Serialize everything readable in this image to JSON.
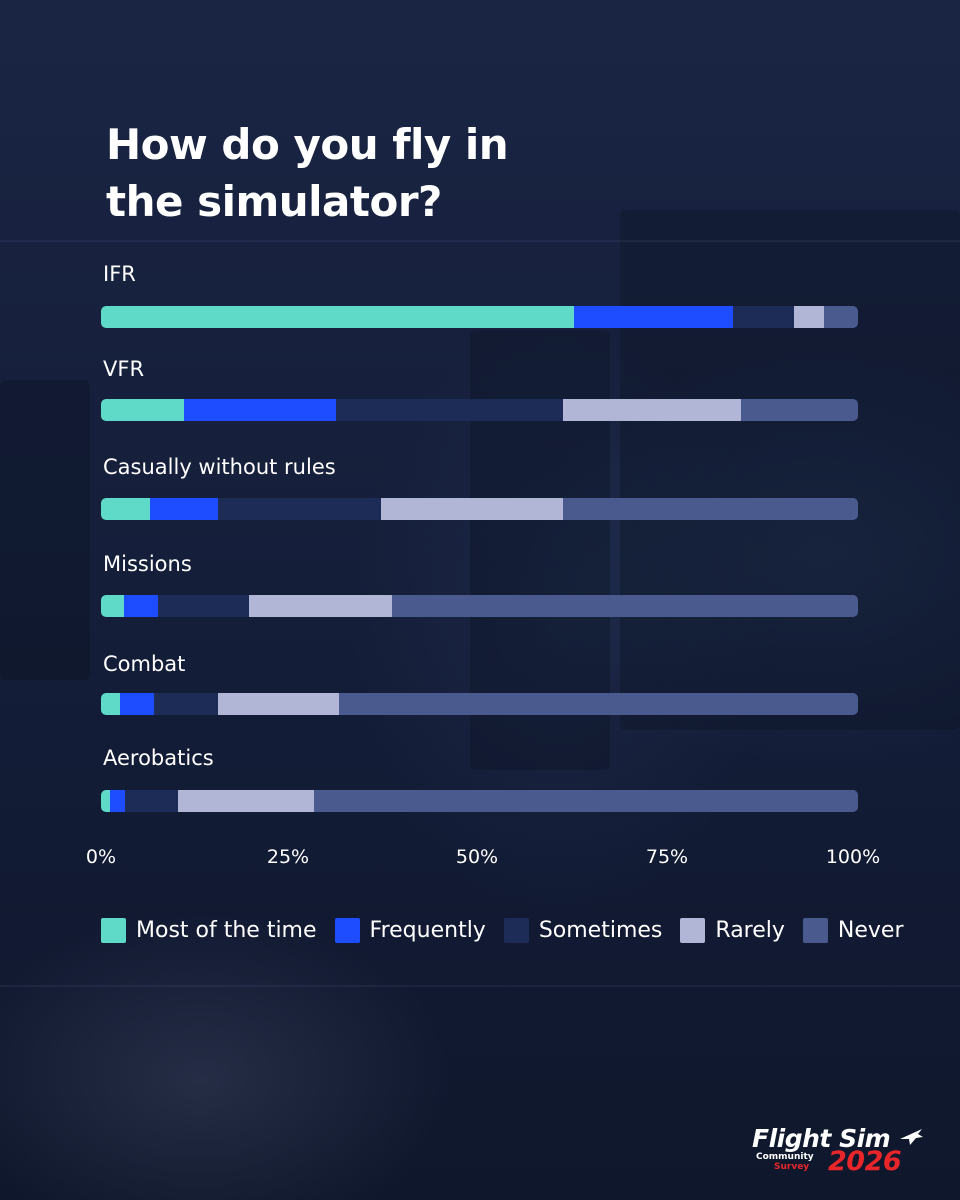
{
  "chart_data": {
    "type": "bar",
    "orientation": "horizontal",
    "stacked": true,
    "title": "How do you fly in\nthe simulator?",
    "categories": [
      "IFR",
      "VFR",
      "Casually without rules",
      "Missions",
      "Combat",
      "Aerobatics"
    ],
    "series": [
      {
        "name": "Most of the time",
        "color": "#5fd9c8",
        "values": [
          62.5,
          11,
          6.5,
          3,
          2.5,
          1.2
        ]
      },
      {
        "name": "Frequently",
        "color": "#1e4dff",
        "values": [
          21,
          20,
          9,
          4.5,
          4.5,
          2
        ]
      },
      {
        "name": "Sometimes",
        "color": "#1d2b57",
        "values": [
          8,
          30,
          21.5,
          12,
          8.5,
          7
        ]
      },
      {
        "name": "Rarely",
        "color": "#b1b6d6",
        "values": [
          4,
          23.5,
          24,
          19,
          16,
          18
        ]
      },
      {
        "name": "Never",
        "color": "#4a5a8e",
        "values": [
          4.5,
          15.5,
          39,
          61.5,
          68.5,
          71.8
        ]
      }
    ],
    "x_ticks": [
      "0%",
      "25%",
      "50%",
      "75%",
      "100%"
    ],
    "xlim": [
      0,
      100
    ],
    "unit": "%",
    "legend_position": "bottom",
    "grid": false
  },
  "branding": {
    "logo_main": "Flight Sim",
    "logo_community": "Community",
    "logo_survey": "Survey",
    "logo_year": "2026",
    "icon": "airplane-icon"
  }
}
